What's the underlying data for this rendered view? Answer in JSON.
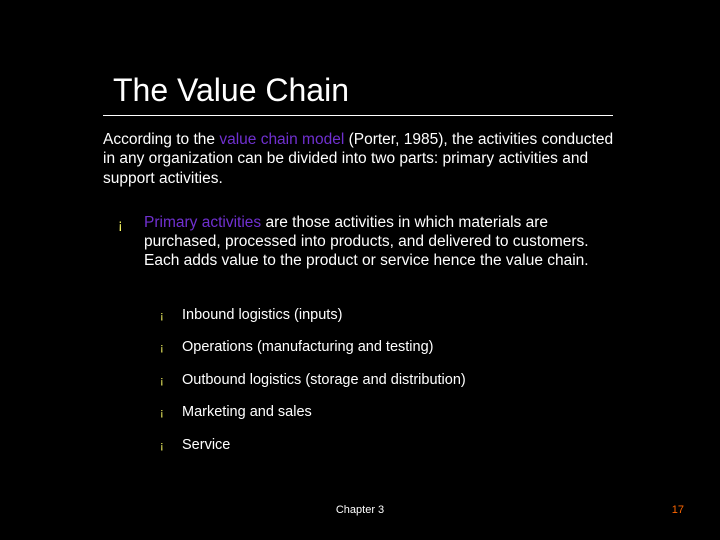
{
  "title": "The Value Chain",
  "intro_pre": "According to the ",
  "intro_em": "value chain model",
  "intro_post": " (Porter, 1985), the activities conducted in any organization can be divided into two parts: primary activities and support activities.",
  "primary_hl": "Primary activities",
  "primary_rest": " are those activities in which materials are purchased, processed into products, and delivered to customers. Each adds value to the product or service hence the value chain.",
  "sub": [
    "Inbound logistics (inputs)",
    "Operations (manufacturing and testing)",
    "Outbound logistics (storage and distribution)",
    "Marketing and sales",
    "Service"
  ],
  "footer_center": "Chapter 3",
  "page_number": "17",
  "bullet_char": "¡",
  "colors": {
    "background": "#000000",
    "text": "#ffffff",
    "accent": "#7030d0",
    "bullet": "#ffff66",
    "page_num": "#ff6600"
  }
}
